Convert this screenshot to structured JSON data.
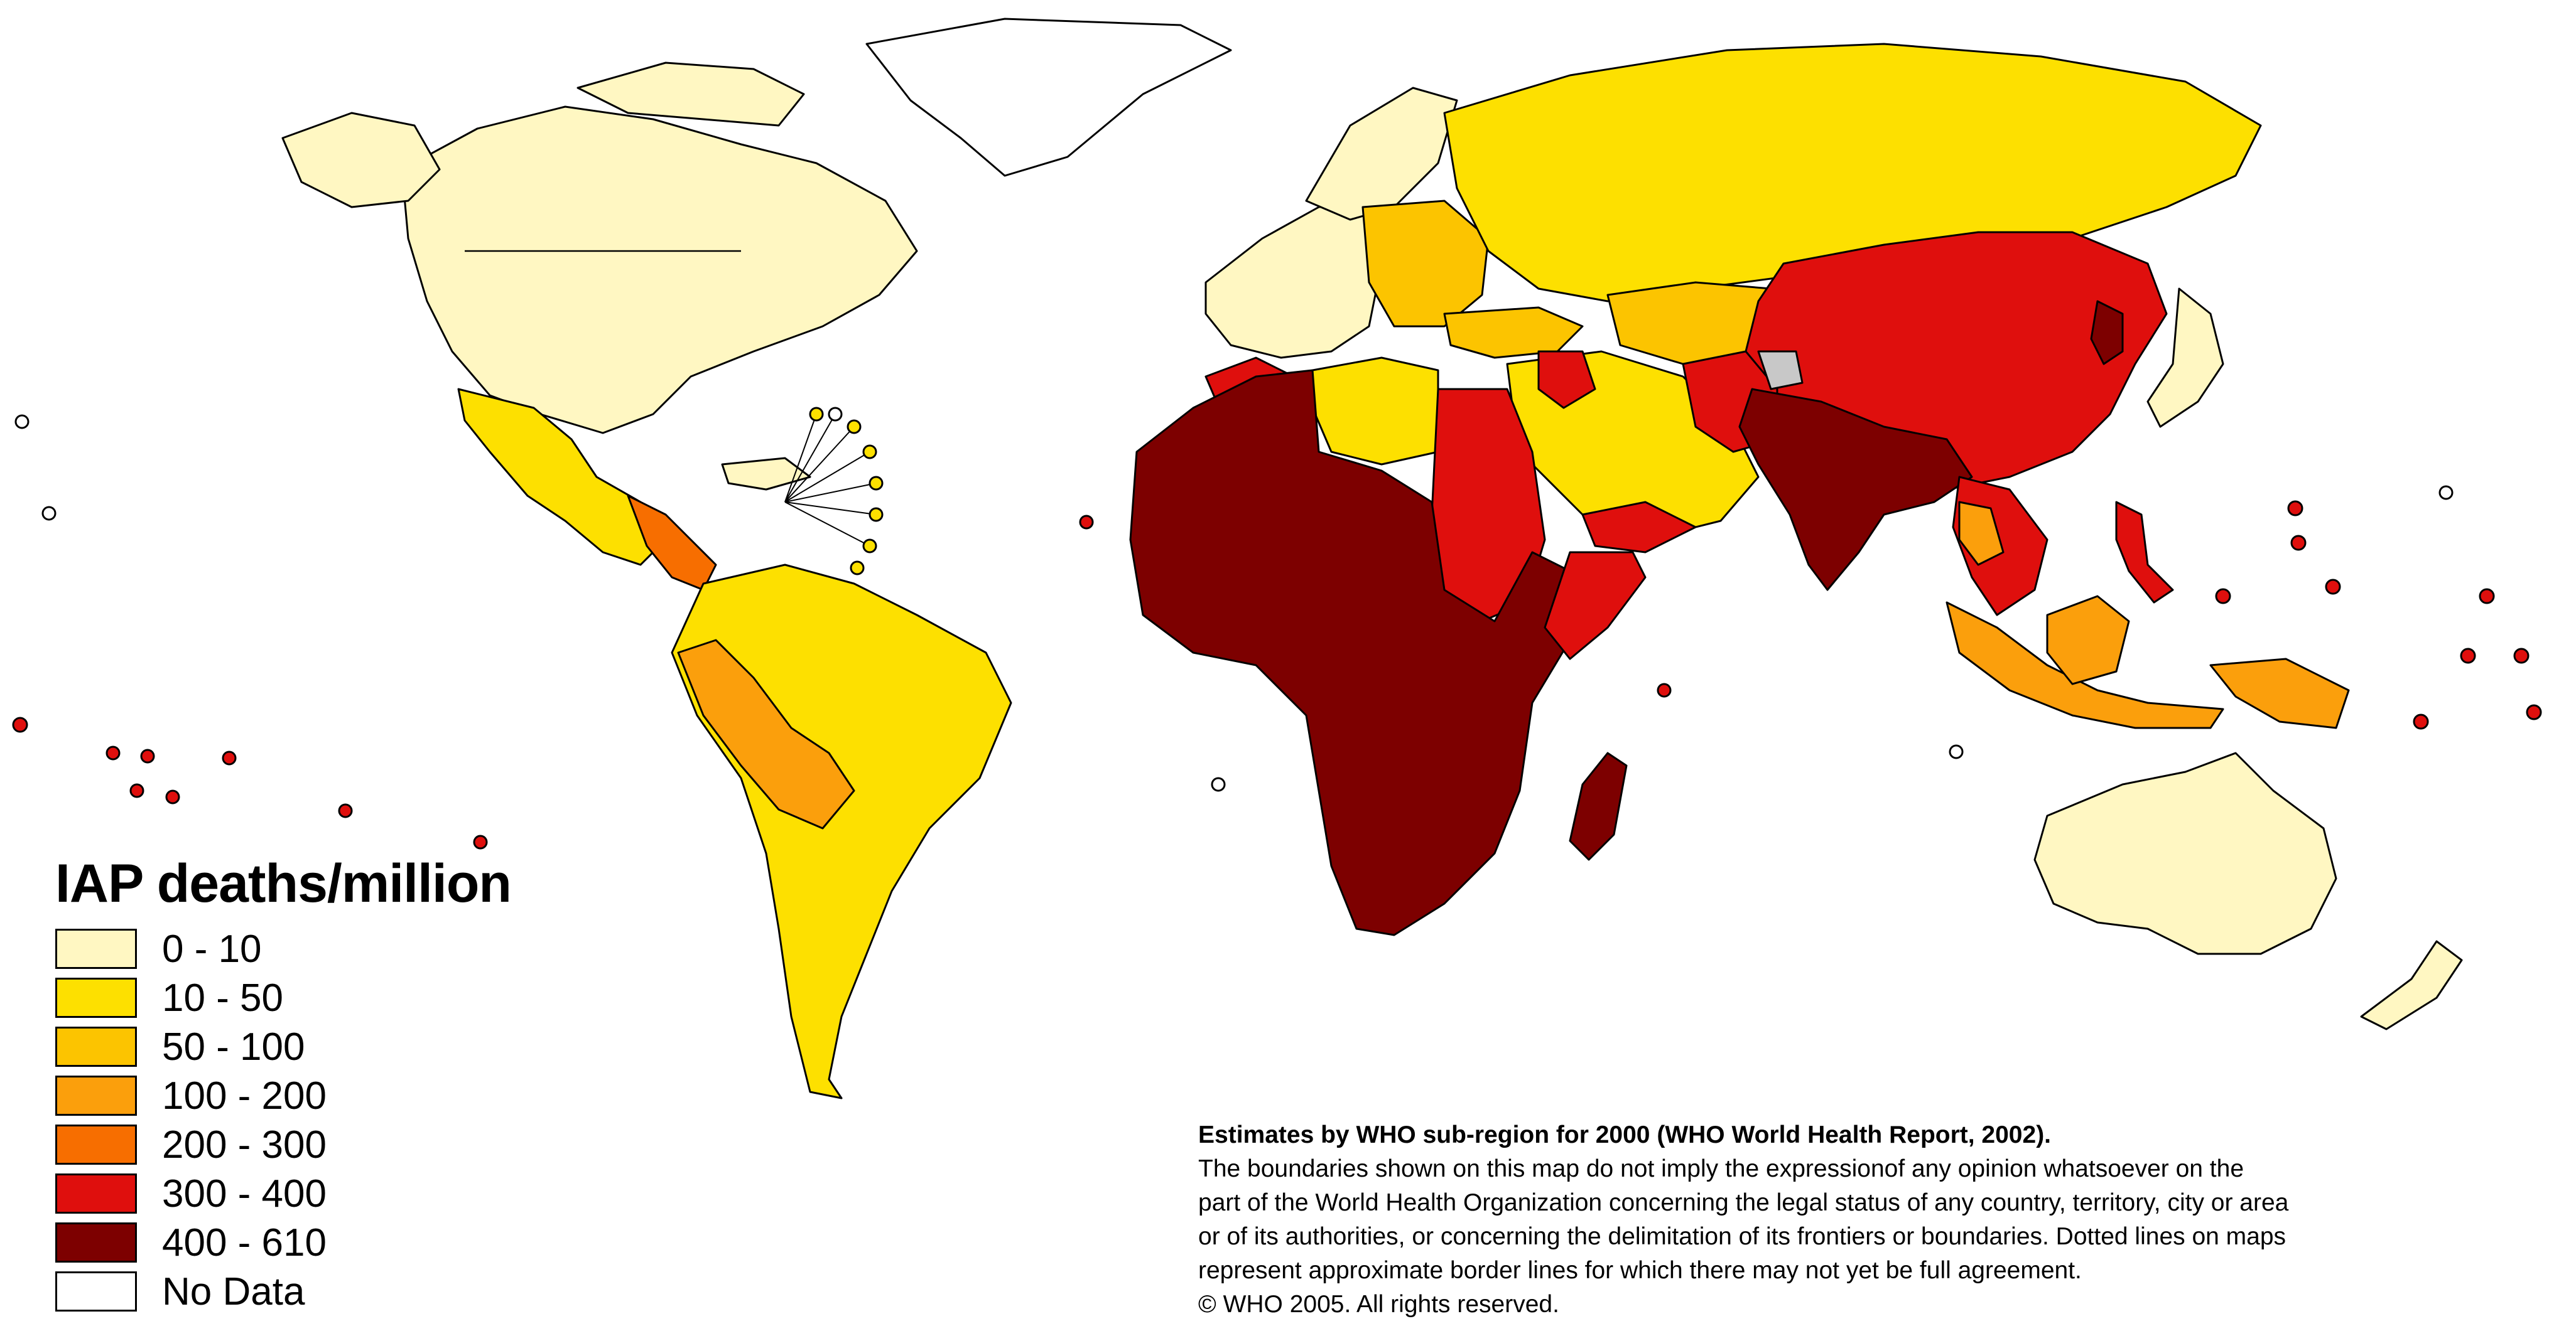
{
  "legend": {
    "title": "IAP deaths/million",
    "items": [
      {
        "label": "0 - 10",
        "color": "#fff7c2"
      },
      {
        "label": "10 - 50",
        "color": "#fde000"
      },
      {
        "label": "50 - 100",
        "color": "#fcc400"
      },
      {
        "label": "100 - 200",
        "color": "#fb9f0c"
      },
      {
        "label": "200 - 300",
        "color": "#f76e00"
      },
      {
        "label": "300 - 400",
        "color": "#df0f0d"
      },
      {
        "label": "400 - 610",
        "color": "#7d0000"
      },
      {
        "label": "No Data",
        "color": "#ffffff"
      }
    ]
  },
  "notes": [
    "Estimates by WHO sub-region for 2000 (WHO World Health Report, 2002).",
    "The boundaries shown on this map do not imply the expressionof any opinion whatsoever on the",
    " part of the World Health Organization concerning the legal status of any country, territory, city or area",
    "or of its authorities, or concerning the delimitation of its frontiers or boundaries.  Dotted lines on maps",
    "represent approximate border lines for which there may not yet be full agreement.",
    "© WHO 2005. All rights reserved."
  ],
  "map_colors": {
    "c0": "#fff7c2",
    "c1": "#fde000",
    "c2": "#fcc400",
    "c3": "#fb9f0c",
    "c4": "#f76e00",
    "c5": "#df0f0d",
    "c6": "#7d0000",
    "nodata": "#ffffff",
    "grey": "#c8c8c8"
  }
}
